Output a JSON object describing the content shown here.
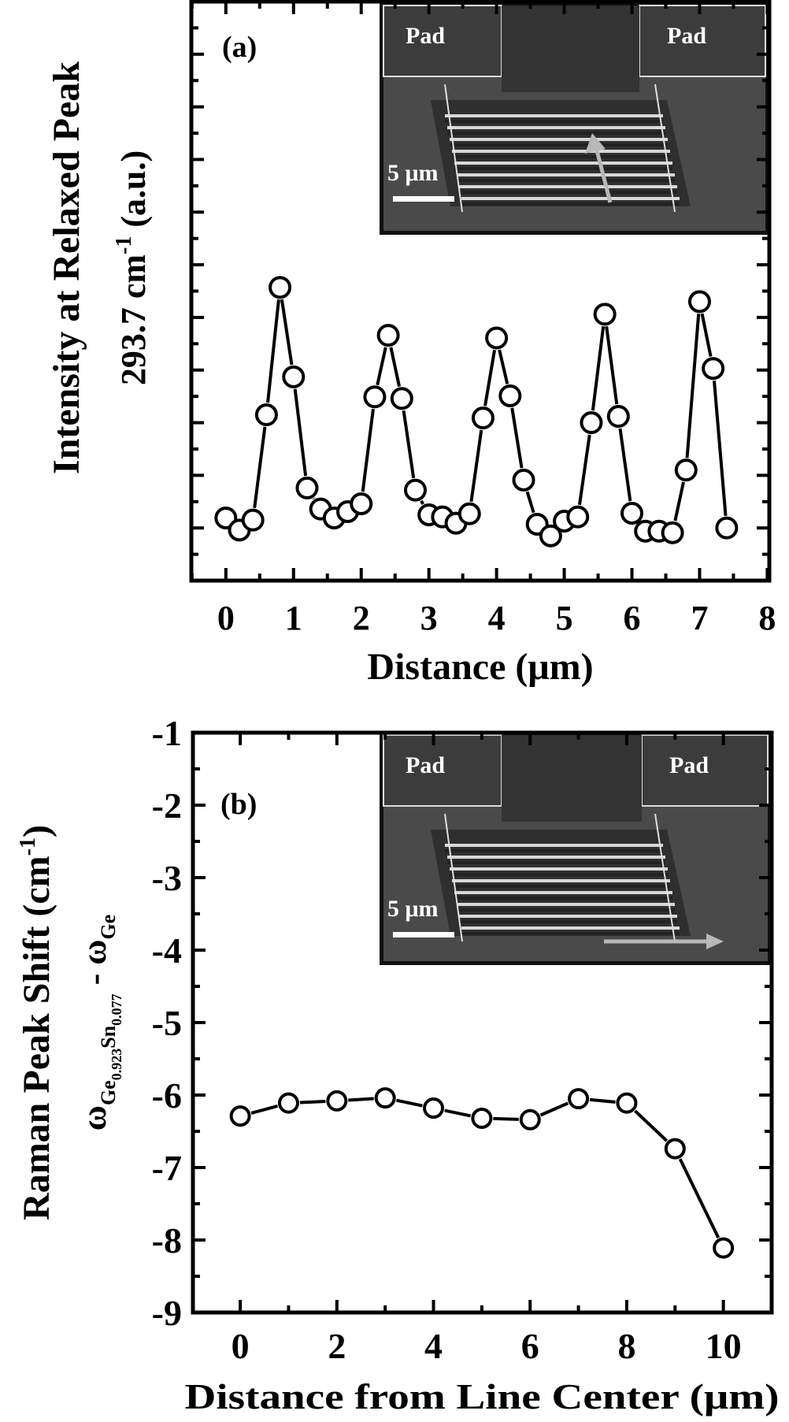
{
  "chart_data": [
    {
      "panel": "a",
      "type": "line",
      "panel_label": "(a)",
      "title": "",
      "xlabel": "Distance (μm)",
      "ylabel_line1": "Intensity at Relaxed Peak",
      "ylabel_line2_prefix": "293.7 cm",
      "ylabel_line2_sup": "-1",
      "ylabel_line2_suffix": " (a.u.)",
      "xlim": [
        -0.51,
        8.03
      ],
      "ylim": [
        0,
        11
      ],
      "xticks": [
        0,
        1,
        2,
        3,
        4,
        5,
        6,
        7,
        8
      ],
      "xtick_labels": [
        "0",
        "1",
        "2",
        "3",
        "4",
        "5",
        "6",
        "7",
        "8"
      ],
      "x_minor_step": 0.5,
      "y_major_step": 1,
      "y_minor_step": 0.5,
      "ytick_labels_shown": false,
      "marker": "open-circle",
      "grid": false,
      "x": [
        0,
        0.2,
        0.4,
        0.6,
        0.8,
        1.0,
        1.2,
        1.4,
        1.6,
        1.8,
        2.0,
        2.2,
        2.4,
        2.6,
        2.8,
        3.0,
        3.2,
        3.4,
        3.6,
        3.8,
        4.0,
        4.2,
        4.4,
        4.6,
        4.8,
        5.0,
        5.2,
        5.4,
        5.6,
        5.8,
        6.0,
        6.2,
        6.4,
        6.6,
        6.8,
        7.0,
        7.2,
        7.4
      ],
      "y": [
        1.19,
        0.96,
        1.15,
        3.15,
        5.57,
        3.87,
        1.76,
        1.36,
        1.19,
        1.31,
        1.46,
        3.49,
        4.66,
        3.46,
        1.72,
        1.25,
        1.21,
        1.09,
        1.27,
        3.09,
        4.61,
        3.51,
        1.91,
        1.07,
        0.85,
        1.13,
        1.21,
        3.0,
        5.06,
        3.12,
        1.28,
        0.94,
        0.94,
        0.91,
        2.1,
        5.3,
        4.03,
        1.0
      ],
      "inset": {
        "description": "SEM image of suspended GeSn line array between two pads",
        "pad_left_label": "Pad",
        "pad_right_label": "Pad",
        "scale_bar_label": "5 μm",
        "arrow_direction": "across lines (vertical)"
      }
    },
    {
      "panel": "b",
      "type": "line",
      "panel_label": "(b)",
      "title": "",
      "xlabel": "Distance from Line Center (μm)",
      "ylabel_line1": "Raman Peak Shift (cm",
      "ylabel_line1_sup": "-1",
      "ylabel_line1_end": ")",
      "ylabel_line2_omega": "ω",
      "ylabel_line2_sub1": "Ge",
      "ylabel_line2_sub1_sub": "0.923",
      "ylabel_line2_sub2": "Sn",
      "ylabel_line2_sub2_sub": "0.077",
      "ylabel_line2_minus": " - ω",
      "ylabel_line2_sub3": "Ge",
      "xlim": [
        -0.98,
        11.0
      ],
      "ylim": [
        -9,
        -1
      ],
      "xticks": [
        0,
        2,
        4,
        6,
        8,
        10
      ],
      "xtick_labels": [
        "0",
        "2",
        "4",
        "6",
        "8",
        "10"
      ],
      "x_minor_step": 1,
      "yticks": [
        -1,
        -2,
        -3,
        -4,
        -5,
        -6,
        -7,
        -8,
        -9
      ],
      "ytick_labels": [
        "-1",
        "-2",
        "-3",
        "-4",
        "-5",
        "-6",
        "-7",
        "-8",
        "-9"
      ],
      "y_minor_step": 0.5,
      "marker": "open-circle",
      "grid": false,
      "x": [
        0,
        1,
        2,
        3,
        4,
        5,
        6,
        7,
        8,
        9,
        10
      ],
      "y": [
        -6.29,
        -6.11,
        -6.08,
        -6.04,
        -6.18,
        -6.32,
        -6.34,
        -6.05,
        -6.11,
        -6.74,
        -8.11
      ],
      "inset": {
        "description": "SEM image of suspended GeSn line array between two pads",
        "pad_left_label": "Pad",
        "pad_right_label": "Pad",
        "scale_bar_label": "5 μm",
        "arrow_direction": "along line (horizontal)"
      }
    }
  ],
  "colors": {
    "axis": "#000000",
    "marker_fill": "#ffffff",
    "inset_bg": "#4a4a4a",
    "inset_text": "#ffffff",
    "arrow": "#b8b8b8"
  }
}
